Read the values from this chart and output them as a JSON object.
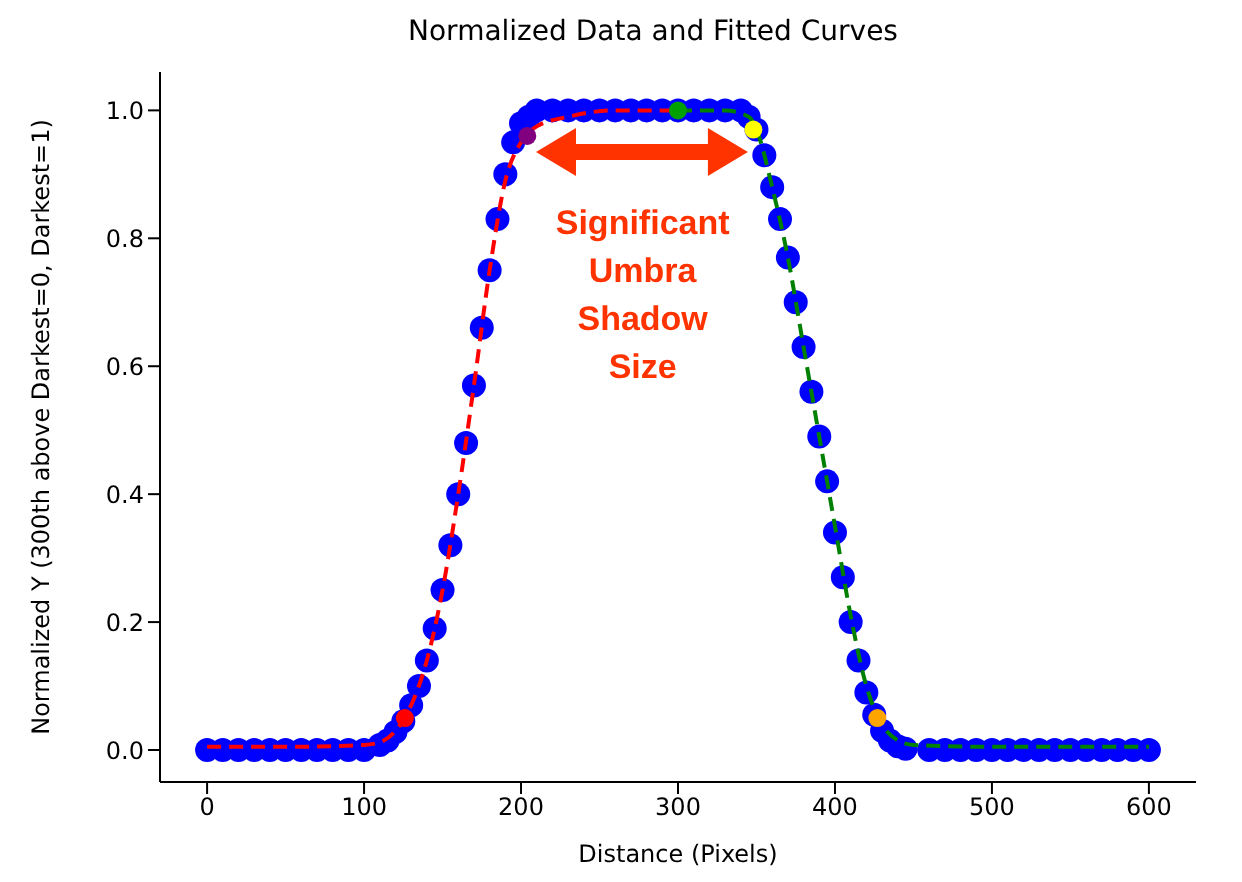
{
  "chart_data": {
    "type": "scatter",
    "title": "Normalized Data and Fitted Curves",
    "xlabel": "Distance (Pixels)",
    "ylabel": "Normalized Y (300th above Darkest=0, Darkest=1)",
    "xlim": [
      -30,
      630
    ],
    "xticks": [
      0,
      100,
      200,
      300,
      400,
      500,
      600
    ],
    "ylim": [
      -0.05,
      1.06
    ],
    "yticks": [
      {
        "value": 0,
        "label": "0.0"
      },
      0.2,
      0.4,
      0.6,
      0.8,
      {
        "value": 1,
        "label": "1.0"
      }
    ],
    "grid": false,
    "legend": false,
    "annotations": [
      "Significant Umbra Shadow Size"
    ],
    "series": [
      {
        "marker": "circle",
        "color": "#0000ff",
        "x": [
          0,
          10,
          20,
          30,
          40,
          50,
          60,
          70,
          80,
          90,
          100,
          110,
          115,
          120,
          125,
          130,
          135,
          140,
          145,
          150,
          155,
          160,
          165,
          170,
          175,
          180,
          185,
          190,
          195,
          200,
          205,
          210,
          220,
          230,
          240,
          250,
          260,
          270,
          280,
          290,
          300,
          310,
          320,
          330,
          340,
          345,
          350,
          355,
          360,
          365,
          370,
          375,
          380,
          385,
          390,
          395,
          400,
          405,
          410,
          415,
          420,
          425,
          430,
          435,
          440,
          445,
          460,
          470,
          480,
          490,
          500,
          510,
          520,
          530,
          540,
          550,
          560,
          570,
          580,
          590,
          600
        ],
        "values": [
          0,
          0,
          0,
          0,
          0,
          0,
          0,
          0,
          0,
          0,
          0,
          0.008,
          0.015,
          0.028,
          0.045,
          0.07,
          0.1,
          0.14,
          0.19,
          0.25,
          0.32,
          0.4,
          0.48,
          0.57,
          0.66,
          0.75,
          0.83,
          0.9,
          0.95,
          0.98,
          0.99,
          1.0,
          1.0,
          1.0,
          1.0,
          1.0,
          1.0,
          1.0,
          1.0,
          1.0,
          1.0,
          1.0,
          1.0,
          1.0,
          1.0,
          0.99,
          0.97,
          0.93,
          0.88,
          0.83,
          0.77,
          0.7,
          0.63,
          0.56,
          0.49,
          0.42,
          0.34,
          0.27,
          0.2,
          0.14,
          0.09,
          0.055,
          0.03,
          0.015,
          0.006,
          0.002,
          0,
          0,
          0,
          0,
          0,
          0,
          0,
          0,
          0,
          0,
          0,
          0,
          0,
          0,
          0
        ]
      },
      {
        "type": "line",
        "line_style": "dashed",
        "marker": "none",
        "color": "#ff0000",
        "x": [
          0,
          50,
          100,
          110,
          120,
          130,
          140,
          150,
          160,
          170,
          180,
          190,
          200,
          210,
          230,
          260,
          300
        ],
        "values": [
          0.005,
          0.005,
          0.008,
          0.012,
          0.03,
          0.07,
          0.14,
          0.25,
          0.4,
          0.57,
          0.75,
          0.89,
          0.95,
          0.975,
          0.99,
          1.0,
          1.0
        ]
      },
      {
        "type": "line",
        "line_style": "dashed",
        "marker": "none",
        "color": "#008000",
        "x": [
          300,
          330,
          345,
          350,
          360,
          370,
          380,
          390,
          400,
          410,
          420,
          430,
          440,
          450,
          500,
          600
        ],
        "values": [
          1.0,
          1.0,
          0.99,
          0.97,
          0.88,
          0.77,
          0.63,
          0.49,
          0.35,
          0.21,
          0.1,
          0.04,
          0.015,
          0.008,
          0.005,
          0.005
        ]
      },
      {
        "marker": "circle",
        "color": "#ff0000",
        "x": [
          126
        ],
        "values": [
          0.05
        ]
      },
      {
        "marker": "circle",
        "color": "#800080",
        "x": [
          204
        ],
        "values": [
          0.96
        ]
      },
      {
        "marker": "circle",
        "color": "#00a000",
        "x": [
          300
        ],
        "values": [
          1.0
        ]
      },
      {
        "marker": "circle",
        "color": "#ffff00",
        "x": [
          348
        ],
        "values": [
          0.97
        ]
      },
      {
        "marker": "circle",
        "color": "#ffa500",
        "x": [
          427
        ],
        "values": [
          0.05
        ]
      }
    ]
  }
}
